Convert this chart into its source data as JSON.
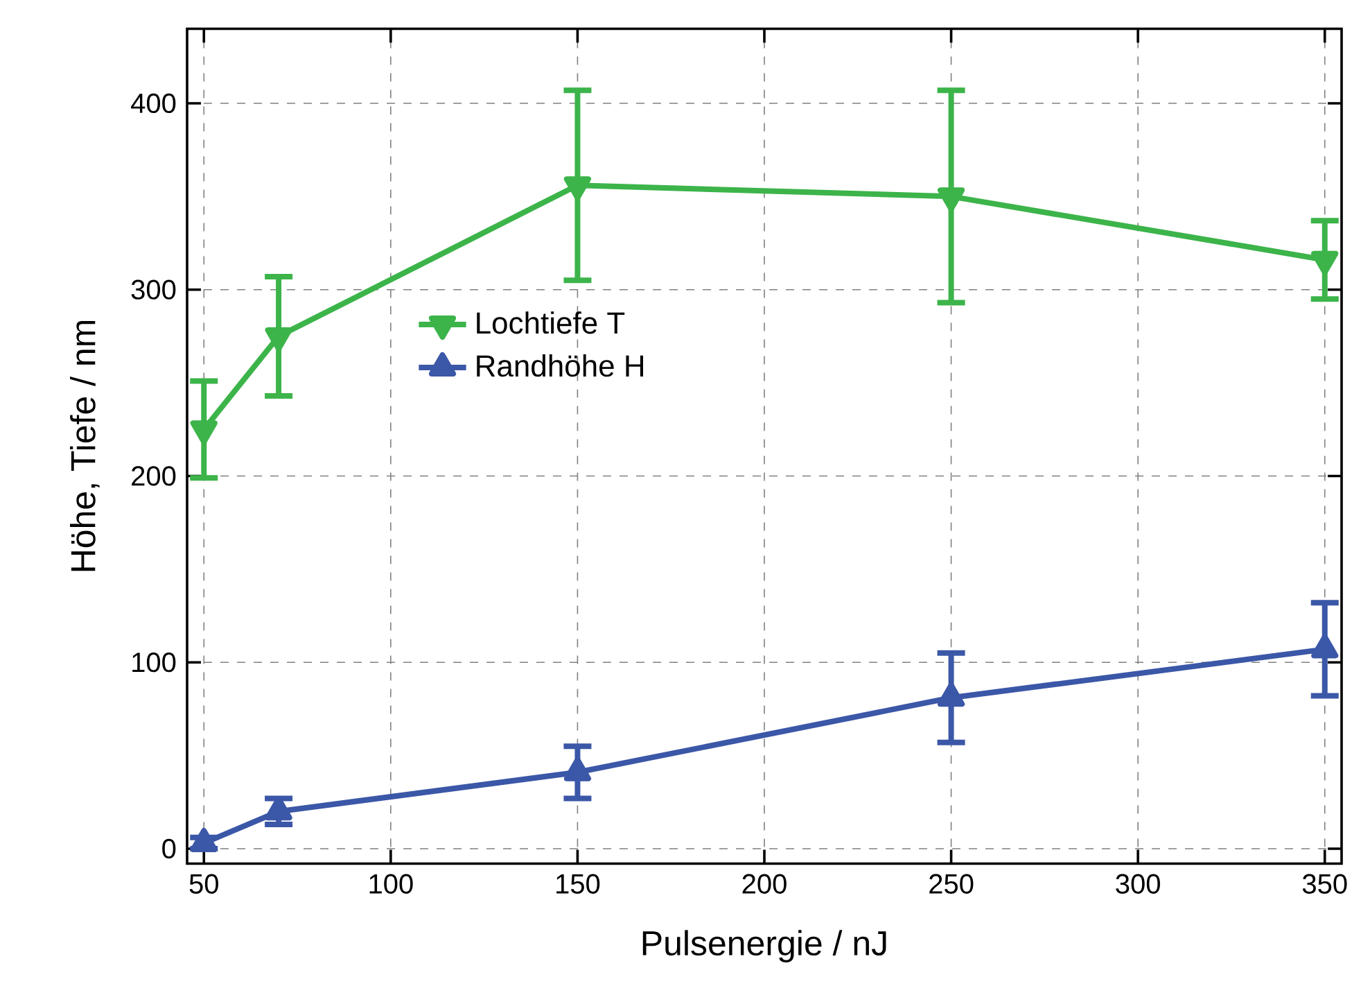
{
  "chart_data": {
    "type": "line",
    "xlabel": "Pulsenergie / nJ",
    "ylabel": "Höhe, Tiefe / nm",
    "x": [
      50,
      70,
      150,
      250,
      350
    ],
    "series": [
      {
        "name": "Lochtiefe T",
        "color": "#3cb44a",
        "marker": "triangle down",
        "values": [
          225,
          275,
          356,
          350,
          316
        ],
        "errors": [
          26,
          32,
          51,
          57,
          21
        ]
      },
      {
        "name": "Randhöhe H",
        "color": "#3b57a7",
        "marker": "triangle",
        "values": [
          3,
          20,
          41,
          81,
          107
        ],
        "errors": [
          3,
          7,
          14,
          24,
          25
        ]
      }
    ],
    "xlim": [
      45.5,
      354.5
    ],
    "ylim": [
      -8,
      440
    ],
    "xticks": [
      50,
      100,
      150,
      200,
      250,
      300,
      350
    ],
    "yticks": [
      0,
      100,
      200,
      300,
      400
    ],
    "grid": true,
    "legend": "left",
    "line_style": "solid"
  }
}
